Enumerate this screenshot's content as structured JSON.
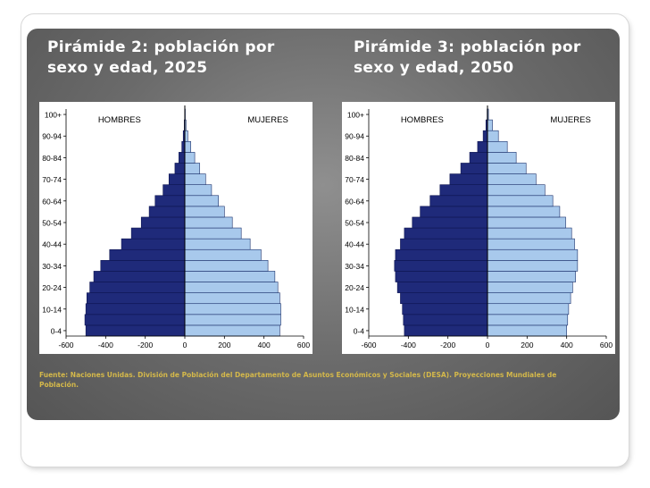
{
  "slide": {
    "source_text": "Fuente: Naciones Unidas. División de Población del Departamento de Asuntos Económicos y Sociales (DESA). Proyecciones Mundiales de Población."
  },
  "colors": {
    "male": "#1f2a7a",
    "female": "#a8c9ec",
    "title": "#ffffff",
    "source": "#d4b84a"
  },
  "chart_data": [
    {
      "type": "bar",
      "orientation": "horizontal-pyramid",
      "title": "Pirámide 2: población por sexo y edad, 2025",
      "categories": [
        "0-4",
        "5-9",
        "10-14",
        "15-19",
        "20-24",
        "25-29",
        "30-34",
        "35-39",
        "40-44",
        "45-49",
        "50-54",
        "55-59",
        "60-64",
        "65-69",
        "70-74",
        "75-79",
        "80-84",
        "85-89",
        "90-94",
        "95-99",
        "100+"
      ],
      "tick_labels": [
        "0-4",
        "10-14",
        "20-24",
        "30-34",
        "40-44",
        "50-54",
        "60-64",
        "70-74",
        "80-84",
        "90-94",
        "100+"
      ],
      "x_ticks": [
        -600,
        -400,
        -200,
        0,
        200,
        400,
        600
      ],
      "xlim": [
        -600,
        600
      ],
      "grid": false,
      "series": [
        {
          "name": "HOMBRES",
          "values": [
            -500,
            -505,
            -500,
            -495,
            -480,
            -460,
            -425,
            -380,
            -320,
            -270,
            -220,
            -180,
            -150,
            -110,
            -80,
            -50,
            -30,
            -15,
            -8,
            -3,
            -1
          ]
        },
        {
          "name": "MUJERES",
          "values": [
            480,
            485,
            485,
            480,
            470,
            455,
            420,
            385,
            330,
            285,
            240,
            200,
            170,
            135,
            105,
            75,
            50,
            30,
            15,
            6,
            2
          ]
        }
      ]
    },
    {
      "type": "bar",
      "orientation": "horizontal-pyramid",
      "title": "Pirámide 3: población por sexo y edad, 2050",
      "categories": [
        "0-4",
        "5-9",
        "10-14",
        "15-19",
        "20-24",
        "25-29",
        "30-34",
        "35-39",
        "40-44",
        "45-49",
        "50-54",
        "55-59",
        "60-64",
        "65-69",
        "70-74",
        "75-79",
        "80-84",
        "85-89",
        "90-94",
        "95-99",
        "100+"
      ],
      "tick_labels": [
        "0-4",
        "10-14",
        "20-24",
        "30-34",
        "40-44",
        "50-54",
        "60-64",
        "70-74",
        "80-84",
        "90-94",
        "100+"
      ],
      "x_ticks": [
        -600,
        -400,
        -200,
        0,
        200,
        400,
        600
      ],
      "xlim": [
        -600,
        600
      ],
      "grid": false,
      "series": [
        {
          "name": "HOMBRES",
          "values": [
            -420,
            -425,
            -430,
            -440,
            -455,
            -465,
            -470,
            -465,
            -440,
            -420,
            -380,
            -340,
            -290,
            -240,
            -190,
            -135,
            -90,
            -50,
            -22,
            -8,
            -2
          ]
        },
        {
          "name": "MUJERES",
          "values": [
            400,
            405,
            410,
            420,
            430,
            445,
            455,
            455,
            440,
            425,
            395,
            365,
            330,
            290,
            245,
            195,
            145,
            100,
            55,
            25,
            5
          ]
        }
      ]
    }
  ]
}
